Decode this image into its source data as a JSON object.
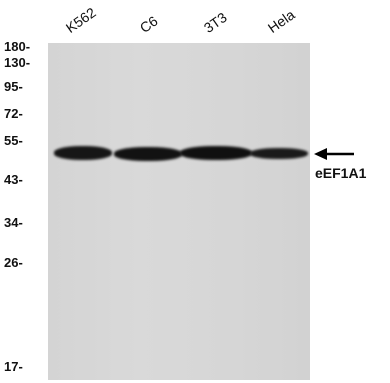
{
  "lanes": [
    "K562",
    "C6",
    "3T3",
    "Hela"
  ],
  "markers": [
    "180-",
    "130-",
    "95-",
    "72-",
    "55-",
    "43-",
    "34-",
    "26-",
    "17-"
  ],
  "target_label": "eEF1A1",
  "arrow_icon": "left-arrow-icon",
  "colors": {
    "membrane": "#d6d6d6",
    "band": "#141414"
  }
}
